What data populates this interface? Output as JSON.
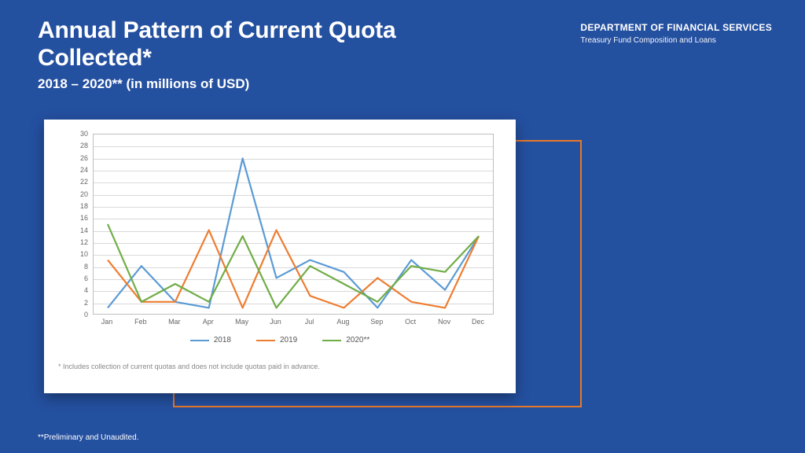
{
  "dept": {
    "title": "DEPARTMENT OF FINANCIAL SERVICES",
    "subtitle": "Treasury Fund Composition and Loans"
  },
  "heading": {
    "line1": "Annual Pattern of Current Quota",
    "line2": "Collected*",
    "sub": "2018 – 2020**  (in millions of USD)"
  },
  "chart": {
    "type": "line",
    "categories": [
      "Jan",
      "Feb",
      "Mar",
      "Apr",
      "May",
      "Jun",
      "Jul",
      "Aug",
      "Sep",
      "Oct",
      "Nov",
      "Dec"
    ],
    "ylim": [
      0,
      30
    ],
    "ytick_step": 2,
    "grid_color": "#d9d9d9",
    "border_color": "#bfbfbf",
    "tick_fontsize": 9,
    "tick_color": "#666666",
    "line_width": 2.2,
    "series": [
      {
        "name": "2018",
        "color": "#5b9bd5",
        "values": [
          1,
          8,
          2,
          1,
          26,
          6,
          9,
          7,
          1,
          9,
          4,
          13
        ]
      },
      {
        "name": "2019",
        "color": "#ed7d31",
        "values": [
          9,
          2,
          2,
          14,
          1,
          14,
          3,
          1,
          6,
          2,
          1,
          13
        ]
      },
      {
        "name": "2020**",
        "color": "#70ad47",
        "values": [
          15,
          2,
          5,
          2,
          13,
          1,
          8,
          5,
          2,
          8,
          7,
          13
        ]
      }
    ],
    "footnote": "* Includes collection of current quotas and does not include quotas paid in advance."
  },
  "footer": "**Preliminary and Unaudited.",
  "colors": {
    "page_bg": "#2450a0",
    "card_bg": "#ffffff",
    "accent_frame": "#e7792b"
  }
}
